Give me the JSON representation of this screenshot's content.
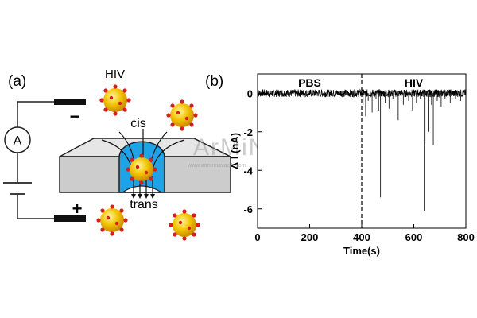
{
  "figure": {
    "panel_a_label": "(a)",
    "panel_b_label": "(b)",
    "virus_label": "HIV",
    "cis_label": "cis",
    "trans_label": "trans",
    "ammeter_symbol": "A",
    "minus_sign": "−",
    "plus_sign": "+",
    "watermark_text": "ArMiN",
    "watermark_url": "www.arminnavaish.com"
  },
  "chart_data": {
    "type": "line",
    "title": "",
    "xlabel": "Time(s)",
    "ylabel": "Δ I (nA)",
    "xlim": [
      0,
      800
    ],
    "ylim": [
      -7,
      1
    ],
    "xticks": [
      0,
      200,
      400,
      600,
      800
    ],
    "yticks": [
      0,
      -2,
      -4,
      -6
    ],
    "regions": [
      {
        "name": "PBS",
        "start": 0,
        "end": 400
      },
      {
        "name": "HIV",
        "start": 400,
        "end": 800
      }
    ],
    "divider_x": 400,
    "baseline": 0,
    "noise_band_nA": 0.2,
    "spikes": [
      {
        "x": 405,
        "y": -0.6
      },
      {
        "x": 415,
        "y": -1.2
      },
      {
        "x": 425,
        "y": -0.4
      },
      {
        "x": 440,
        "y": -1.0
      },
      {
        "x": 455,
        "y": -0.3
      },
      {
        "x": 465,
        "y": -0.9
      },
      {
        "x": 472,
        "y": -5.4
      },
      {
        "x": 490,
        "y": -0.5
      },
      {
        "x": 505,
        "y": -0.8
      },
      {
        "x": 520,
        "y": -0.3
      },
      {
        "x": 540,
        "y": -1.4
      },
      {
        "x": 560,
        "y": -0.6
      },
      {
        "x": 580,
        "y": -0.4
      },
      {
        "x": 595,
        "y": -0.9
      },
      {
        "x": 610,
        "y": -0.5
      },
      {
        "x": 625,
        "y": -0.3
      },
      {
        "x": 640,
        "y": -6.1
      },
      {
        "x": 643,
        "y": -2.6
      },
      {
        "x": 655,
        "y": -2.0
      },
      {
        "x": 668,
        "y": -0.6
      },
      {
        "x": 675,
        "y": -2.7
      },
      {
        "x": 690,
        "y": -0.4
      },
      {
        "x": 705,
        "y": -0.7
      },
      {
        "x": 720,
        "y": -0.3
      },
      {
        "x": 740,
        "y": -0.5
      },
      {
        "x": 760,
        "y": -0.3
      },
      {
        "x": 780,
        "y": -0.4
      }
    ]
  }
}
